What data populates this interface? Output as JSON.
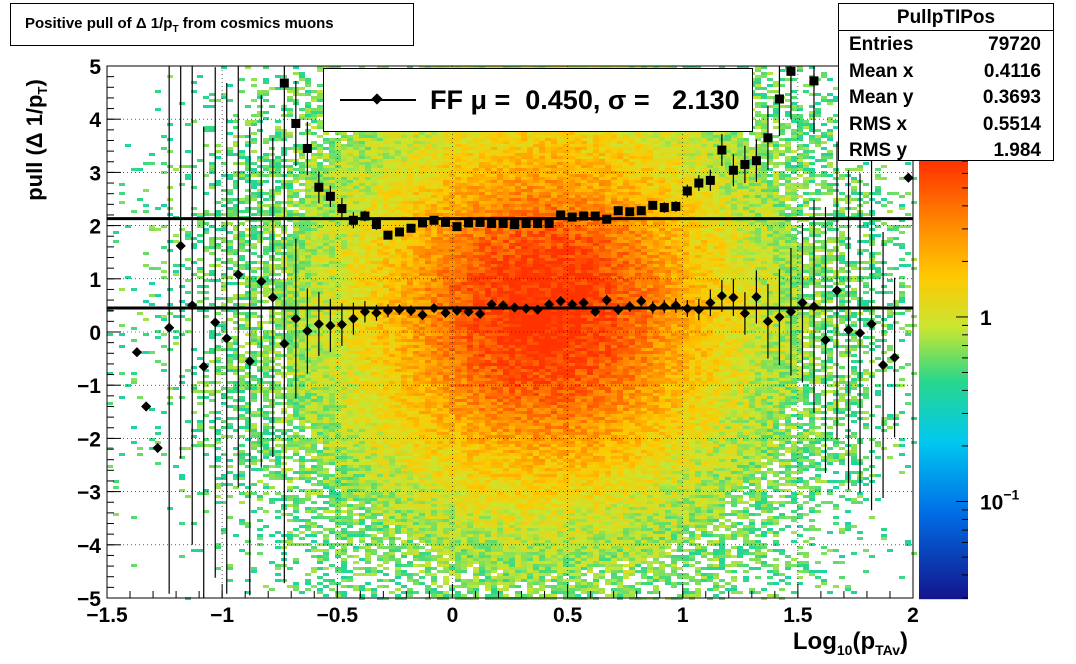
{
  "title": {
    "prefix": "Positive pull of Δ 1/p",
    "sub": "T",
    "suffix": " from cosmics muons"
  },
  "stats": {
    "name": "PullpTIPos",
    "rows": [
      {
        "label": "Entries",
        "value": "79720"
      },
      {
        "label": "Mean x",
        "value": "0.4116"
      },
      {
        "label": "Mean y",
        "value": "0.3693"
      },
      {
        "label": "RMS x",
        "value": "0.5514"
      },
      {
        "label": "RMS y",
        "value": "1.984"
      }
    ]
  },
  "legend": {
    "text": "FF μ =  0.450, σ =   2.130"
  },
  "colors": {
    "frame": "#000000",
    "marker": "#000000",
    "palette_low": "#1a1a8c",
    "palette_high": "#ff3b00"
  },
  "chart_data": {
    "type": "heatmap",
    "xlabel": {
      "main": "Log",
      "sub1": "10",
      "mid": "(p",
      "sub2": "TAv",
      "end": ")"
    },
    "ylabel": {
      "main": "pull (Δ 1/p",
      "sub": "T",
      "end": ")"
    },
    "xlim": [
      -1.5,
      2.0
    ],
    "ylim": [
      -5,
      5
    ],
    "x_ticks": [
      "−1.5",
      "−1",
      "−0.5",
      "0",
      "0.5",
      "1",
      "1.5",
      "2"
    ],
    "x_tick_values": [
      -1.5,
      -1,
      -0.5,
      0,
      0.5,
      1,
      1.5,
      2
    ],
    "y_ticks": [
      "−5",
      "−4",
      "−3",
      "−2",
      "−1",
      "0",
      "1",
      "2",
      "3",
      "4",
      "5"
    ],
    "y_tick_values": [
      -5,
      -4,
      -3,
      -2,
      -1,
      0,
      1,
      2,
      3,
      4,
      5
    ],
    "grid": true,
    "colorbar": {
      "scale": "log",
      "range": [
        0.03,
        7
      ],
      "tick_labels": [
        {
          "value": 1,
          "label": "1"
        },
        {
          "value": 0.1,
          "label": "10",
          "exp": "−1"
        }
      ]
    },
    "reference_lines": [
      {
        "y": 0.45
      },
      {
        "y": 2.13
      }
    ],
    "series": [
      {
        "marker": "diamond",
        "points": [
          {
            "x": -1.37,
            "y": -0.38,
            "err": 0.0
          },
          {
            "x": -1.33,
            "y": -1.4,
            "err": 0.0
          },
          {
            "x": -1.28,
            "y": -2.18,
            "err": 0.0
          },
          {
            "x": -1.23,
            "y": 0.08,
            "err": 5.0
          },
          {
            "x": -1.18,
            "y": 1.62,
            "err": 4.0
          },
          {
            "x": -1.13,
            "y": 0.5,
            "err": 4.5
          },
          {
            "x": -1.08,
            "y": -0.65,
            "err": 4.5
          },
          {
            "x": -1.03,
            "y": 0.18,
            "err": 4.8
          },
          {
            "x": -0.98,
            "y": -0.12,
            "err": 4.8
          },
          {
            "x": -0.93,
            "y": 1.08,
            "err": 4.0
          },
          {
            "x": -0.88,
            "y": -0.55,
            "err": 4.4
          },
          {
            "x": -0.83,
            "y": 0.95,
            "err": 3.5
          },
          {
            "x": -0.78,
            "y": 0.65,
            "err": 3.0
          },
          {
            "x": -0.73,
            "y": -0.22,
            "err": 4.5
          },
          {
            "x": -0.68,
            "y": 0.25,
            "err": 1.5
          },
          {
            "x": -0.63,
            "y": 0.02,
            "err": 0.8
          },
          {
            "x": -0.58,
            "y": 0.15,
            "err": 0.6
          },
          {
            "x": -0.53,
            "y": 0.12,
            "err": 0.5
          },
          {
            "x": -0.48,
            "y": 0.14,
            "err": 0.4
          },
          {
            "x": -0.43,
            "y": 0.25,
            "err": 0.3
          },
          {
            "x": -0.38,
            "y": 0.38,
            "err": 0.2
          },
          {
            "x": -0.33,
            "y": 0.36,
            "err": 0.15
          },
          {
            "x": -0.28,
            "y": 0.4,
            "err": 0.12
          },
          {
            "x": -0.23,
            "y": 0.42,
            "err": 0.1
          },
          {
            "x": -0.18,
            "y": 0.4,
            "err": 0.1
          },
          {
            "x": -0.13,
            "y": 0.32,
            "err": 0.1
          },
          {
            "x": -0.08,
            "y": 0.45,
            "err": 0.08
          },
          {
            "x": -0.03,
            "y": 0.36,
            "err": 0.08
          },
          {
            "x": 0.02,
            "y": 0.4,
            "err": 0.08
          },
          {
            "x": 0.07,
            "y": 0.38,
            "err": 0.08
          },
          {
            "x": 0.12,
            "y": 0.34,
            "err": 0.08
          },
          {
            "x": 0.17,
            "y": 0.52,
            "err": 0.08
          },
          {
            "x": 0.22,
            "y": 0.5,
            "err": 0.08
          },
          {
            "x": 0.27,
            "y": 0.46,
            "err": 0.08
          },
          {
            "x": 0.32,
            "y": 0.44,
            "err": 0.08
          },
          {
            "x": 0.37,
            "y": 0.42,
            "err": 0.08
          },
          {
            "x": 0.42,
            "y": 0.52,
            "err": 0.08
          },
          {
            "x": 0.47,
            "y": 0.58,
            "err": 0.08
          },
          {
            "x": 0.52,
            "y": 0.52,
            "err": 0.08
          },
          {
            "x": 0.57,
            "y": 0.55,
            "err": 0.08
          },
          {
            "x": 0.62,
            "y": 0.38,
            "err": 0.08
          },
          {
            "x": 0.67,
            "y": 0.6,
            "err": 0.1
          },
          {
            "x": 0.72,
            "y": 0.42,
            "err": 0.1
          },
          {
            "x": 0.77,
            "y": 0.48,
            "err": 0.1
          },
          {
            "x": 0.82,
            "y": 0.58,
            "err": 0.1
          },
          {
            "x": 0.87,
            "y": 0.46,
            "err": 0.12
          },
          {
            "x": 0.92,
            "y": 0.48,
            "err": 0.12
          },
          {
            "x": 0.97,
            "y": 0.5,
            "err": 0.14
          },
          {
            "x": 1.02,
            "y": 0.44,
            "err": 0.16
          },
          {
            "x": 1.07,
            "y": 0.42,
            "err": 0.2
          },
          {
            "x": 1.12,
            "y": 0.55,
            "err": 0.25
          },
          {
            "x": 1.17,
            "y": 0.68,
            "err": 0.3
          },
          {
            "x": 1.22,
            "y": 0.65,
            "err": 0.35
          },
          {
            "x": 1.27,
            "y": 0.35,
            "err": 0.4
          },
          {
            "x": 1.32,
            "y": 0.66,
            "err": 0.5
          },
          {
            "x": 1.37,
            "y": 0.2,
            "err": 0.7
          },
          {
            "x": 1.42,
            "y": 0.28,
            "err": 0.9
          },
          {
            "x": 1.47,
            "y": 0.38,
            "err": 1.2
          },
          {
            "x": 1.52,
            "y": 0.55,
            "err": 1.5
          },
          {
            "x": 1.57,
            "y": 0.48,
            "err": 2.0
          },
          {
            "x": 1.62,
            "y": -0.15,
            "err": 2.5
          },
          {
            "x": 1.67,
            "y": 0.78,
            "err": 2.8
          },
          {
            "x": 1.72,
            "y": 0.04,
            "err": 3.0
          },
          {
            "x": 1.77,
            "y": -0.02,
            "err": 3.0
          },
          {
            "x": 1.82,
            "y": 0.15,
            "err": 3.5
          },
          {
            "x": 1.87,
            "y": -0.62,
            "err": 2.5
          },
          {
            "x": 1.92,
            "y": -0.48,
            "err": 1.5
          },
          {
            "x": 1.98,
            "y": 2.9,
            "err": 0.0
          }
        ]
      },
      {
        "marker": "square",
        "points": [
          {
            "x": -0.73,
            "y": 4.68,
            "err": 0.6
          },
          {
            "x": -0.68,
            "y": 3.92,
            "err": 0.8
          },
          {
            "x": -0.63,
            "y": 3.45,
            "err": 0.5
          },
          {
            "x": -0.58,
            "y": 2.72,
            "err": 0.3
          },
          {
            "x": -0.53,
            "y": 2.55,
            "err": 0.2
          },
          {
            "x": -0.48,
            "y": 2.32,
            "err": 0.2
          },
          {
            "x": -0.43,
            "y": 2.1,
            "err": 0.15
          },
          {
            "x": -0.38,
            "y": 2.18,
            "err": 0.1
          },
          {
            "x": -0.33,
            "y": 2.02,
            "err": 0.1
          },
          {
            "x": -0.28,
            "y": 1.82,
            "err": 0.08
          },
          {
            "x": -0.23,
            "y": 1.88,
            "err": 0.08
          },
          {
            "x": -0.18,
            "y": 1.95,
            "err": 0.08
          },
          {
            "x": -0.13,
            "y": 2.05,
            "err": 0.06
          },
          {
            "x": -0.08,
            "y": 2.1,
            "err": 0.06
          },
          {
            "x": -0.03,
            "y": 2.06,
            "err": 0.06
          },
          {
            "x": 0.02,
            "y": 1.98,
            "err": 0.06
          },
          {
            "x": 0.07,
            "y": 2.05,
            "err": 0.06
          },
          {
            "x": 0.12,
            "y": 2.06,
            "err": 0.06
          },
          {
            "x": 0.17,
            "y": 2.04,
            "err": 0.06
          },
          {
            "x": 0.22,
            "y": 2.04,
            "err": 0.06
          },
          {
            "x": 0.27,
            "y": 2.02,
            "err": 0.06
          },
          {
            "x": 0.32,
            "y": 2.04,
            "err": 0.06
          },
          {
            "x": 0.37,
            "y": 2.04,
            "err": 0.06
          },
          {
            "x": 0.42,
            "y": 2.04,
            "err": 0.06
          },
          {
            "x": 0.47,
            "y": 2.2,
            "err": 0.06
          },
          {
            "x": 0.52,
            "y": 2.16,
            "err": 0.06
          },
          {
            "x": 0.57,
            "y": 2.18,
            "err": 0.06
          },
          {
            "x": 0.62,
            "y": 2.18,
            "err": 0.06
          },
          {
            "x": 0.67,
            "y": 2.12,
            "err": 0.07
          },
          {
            "x": 0.72,
            "y": 2.28,
            "err": 0.07
          },
          {
            "x": 0.77,
            "y": 2.26,
            "err": 0.07
          },
          {
            "x": 0.82,
            "y": 2.28,
            "err": 0.08
          },
          {
            "x": 0.87,
            "y": 2.38,
            "err": 0.08
          },
          {
            "x": 0.92,
            "y": 2.34,
            "err": 0.1
          },
          {
            "x": 0.97,
            "y": 2.36,
            "err": 0.1
          },
          {
            "x": 1.02,
            "y": 2.65,
            "err": 0.12
          },
          {
            "x": 1.07,
            "y": 2.8,
            "err": 0.15
          },
          {
            "x": 1.12,
            "y": 2.85,
            "err": 0.2
          },
          {
            "x": 1.17,
            "y": 3.42,
            "err": 0.3
          },
          {
            "x": 1.22,
            "y": 3.04,
            "err": 0.3
          },
          {
            "x": 1.27,
            "y": 3.15,
            "err": 0.35
          },
          {
            "x": 1.32,
            "y": 3.22,
            "err": 0.4
          },
          {
            "x": 1.37,
            "y": 3.65,
            "err": 0.6
          },
          {
            "x": 1.42,
            "y": 4.38,
            "err": 0.7
          },
          {
            "x": 1.47,
            "y": 4.9,
            "err": 0.9
          },
          {
            "x": 1.57,
            "y": 4.72,
            "err": 1.0
          }
        ]
      }
    ]
  }
}
